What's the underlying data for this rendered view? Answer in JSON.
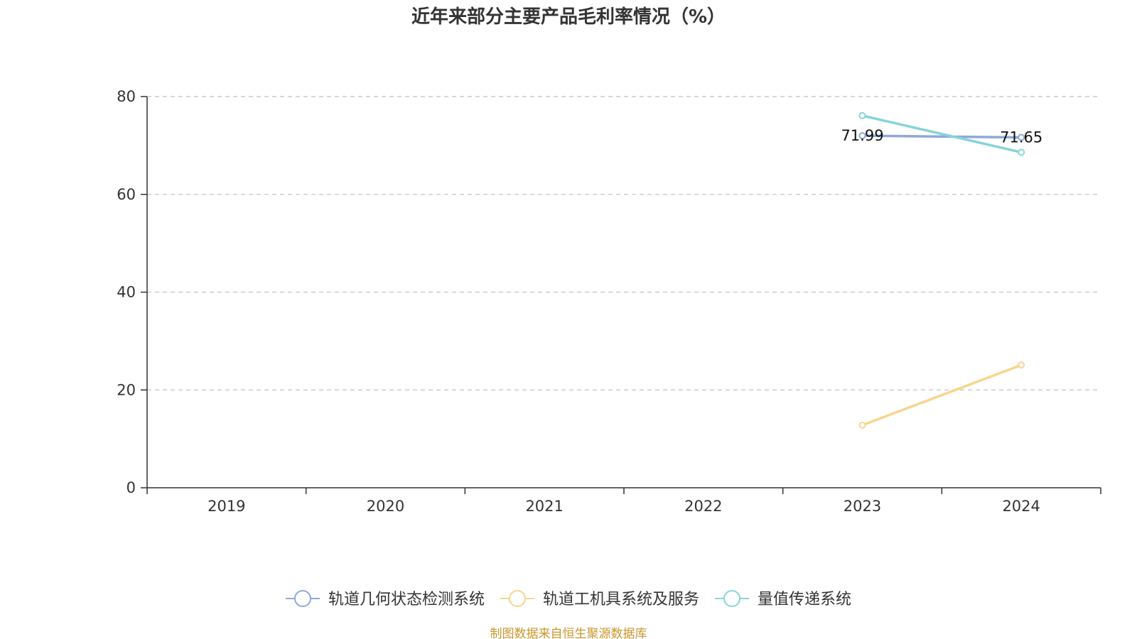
{
  "chart_data": {
    "type": "line",
    "title": "近年来部分主要产品毛利率情况（%）",
    "categories": [
      "2019",
      "2020",
      "2021",
      "2022",
      "2023",
      "2024"
    ],
    "ylim": [
      0,
      80
    ],
    "yticks": [
      0,
      20,
      40,
      60,
      80
    ],
    "grid": true,
    "legend_position": "bottom",
    "series": [
      {
        "name": "轨道几何状态检测系统",
        "color": "#8fa8d8",
        "values": [
          null,
          null,
          null,
          null,
          71.99,
          71.65
        ],
        "labels": [
          "",
          "",
          "",
          "",
          "71.99",
          "71.65"
        ]
      },
      {
        "name": "轨道工机具系统及服务",
        "color": "#f8d48e",
        "values": [
          null,
          null,
          null,
          null,
          12.8,
          25.1
        ],
        "labels": [
          "",
          "",
          "",
          "",
          "",
          ""
        ]
      },
      {
        "name": "量值传递系统",
        "color": "#86d4d8",
        "values": [
          null,
          null,
          null,
          null,
          76.1,
          68.6
        ],
        "labels": [
          "",
          "",
          "",
          "",
          "",
          ""
        ]
      }
    ]
  },
  "source": "制图数据来自恒生聚源数据库"
}
